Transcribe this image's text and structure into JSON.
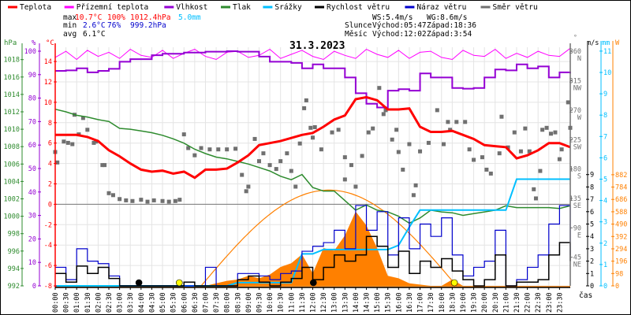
{
  "legend": [
    {
      "label": "Teplota",
      "color": "#ff0000"
    },
    {
      "label": "Přízemní teplota",
      "color": "#ff00ff"
    },
    {
      "label": "Vlhkost",
      "color": "#9400d3"
    },
    {
      "label": "Tlak",
      "color": "#2e8b2e"
    },
    {
      "label": "Srážky",
      "color": "#00bfff"
    },
    {
      "label": "Rychlost větru",
      "color": "#000000"
    },
    {
      "label": "Náraz větru",
      "color": "#0000cc"
    },
    {
      "label": "Směr větru",
      "color": "#707070"
    }
  ],
  "stats": {
    "max_label": "max",
    "min_label": "min",
    "avg_label": "avg",
    "max_temp": "10.7°C",
    "max_hum": "100%",
    "max_press": "1012.4hPa",
    "max_rain": "5.0mm",
    "min_temp": "2.6°C",
    "min_hum": "76%",
    "min_press": "999.2hPa",
    "avg_temp": "6.1°C",
    "ws": "WS:5.4m/s",
    "wg": "WG:8.6m/s",
    "sun_label": "Slunce",
    "sunrise": "Východ:05:47",
    "sunset": "Západ:18:36",
    "moon_label": "Měsíc",
    "moonrise": "Východ:12:02",
    "moonset": "Západ:3:54"
  },
  "chart_data": {
    "type": "line",
    "title": "31.3.2023",
    "xlabel": "čas",
    "x_tick_labels": [
      "00:00",
      "00:30",
      "01:00",
      "01:30",
      "02:00",
      "02:30",
      "03:00",
      "03:30",
      "04:00",
      "04:30",
      "05:00",
      "05:30",
      "06:00",
      "06:30",
      "07:00",
      "07:30",
      "08:00",
      "08:30",
      "09:00",
      "09:30",
      "10:00",
      "10:30",
      "11:00",
      "11:30",
      "12:00",
      "12:30",
      "13:00",
      "13:30",
      "14:00",
      "14:30",
      "15:00",
      "15:30",
      "16:00",
      "16:30",
      "17:00",
      "17:30",
      "18:00",
      "18:30",
      "19:00",
      "19:30",
      "20:00",
      "20:30",
      "21:00",
      "21:30",
      "22:00",
      "22:30",
      "23:00",
      "23:30"
    ],
    "x_hours_step": 0.5,
    "axes": {
      "pressure": {
        "unit": "hPa",
        "range": [
          992,
          1018
        ],
        "ticks": [
          992,
          994,
          996,
          998,
          1000,
          1002,
          1004,
          1006,
          1008,
          1010,
          1012,
          1014,
          1016,
          1018
        ],
        "color": "#2e8b2e"
      },
      "humidity": {
        "unit": "%",
        "range": [
          0,
          100
        ],
        "ticks": [
          0,
          10,
          20,
          30,
          40,
          50,
          60,
          70,
          80,
          90,
          100
        ],
        "color": "#9400d3"
      },
      "temperature": {
        "unit": "°C",
        "range": [
          -8,
          14
        ],
        "ticks": [
          -8,
          -6,
          -4,
          -2,
          0,
          2,
          4,
          6,
          8,
          10,
          12,
          14
        ],
        "color": "#ff0000"
      },
      "direction": {
        "unit": "°",
        "ticks": [
          {
            "v": 45,
            "l": "45",
            "d": "NE"
          },
          {
            "v": 90,
            "l": "90",
            "d": "E"
          },
          {
            "v": 135,
            "l": "135",
            "d": "SE"
          },
          {
            "v": 180,
            "l": "180",
            "d": "S"
          },
          {
            "v": 225,
            "l": "225",
            "d": "SW"
          },
          {
            "v": 270,
            "l": "270",
            "d": "W"
          },
          {
            "v": 315,
            "l": "315",
            "d": "NW"
          },
          {
            "v": 360,
            "l": "360",
            "d": "N"
          }
        ],
        "color": "#707070"
      },
      "wind": {
        "unit": "m/s",
        "range": [
          0,
          9
        ],
        "ticks": [
          0,
          1,
          2,
          3,
          4,
          5,
          6,
          7,
          8,
          9
        ],
        "color": "#000000"
      },
      "rain": {
        "unit": "mm",
        "range": [
          0,
          11
        ],
        "ticks": [
          0,
          1,
          2,
          3,
          4,
          5,
          6,
          7,
          8,
          9,
          10,
          11
        ],
        "color": "#00bfff"
      },
      "radiation": {
        "unit": "W",
        "range": [
          0,
          882
        ],
        "ticks": [
          0,
          98,
          196,
          294,
          392,
          490,
          588,
          686,
          784,
          882
        ],
        "color": "#ff8000"
      }
    },
    "series": [
      {
        "name": "Teplota",
        "axis": "temperature",
        "values": [
          6.8,
          6.8,
          6.8,
          6.6,
          6.2,
          5.3,
          4.7,
          4.0,
          3.4,
          3.2,
          3.3,
          3.0,
          3.2,
          2.6,
          3.4,
          3.4,
          3.5,
          4.1,
          4.8,
          5.8,
          6.0,
          6.2,
          6.5,
          6.8,
          7.0,
          7.6,
          8.3,
          8.7,
          10.3,
          10.5,
          10.2,
          9.3,
          9.3,
          9.4,
          7.6,
          7.1,
          7.1,
          7.2,
          6.8,
          6.4,
          5.8,
          5.7,
          5.6,
          4.5,
          4.8,
          5.3,
          6.0,
          6.0,
          5.6
        ]
      },
      {
        "name": "Přízemní teplota",
        "axis": "temperature",
        "values": [
          14.4,
          15.0,
          14.2,
          15.1,
          14.5,
          14.9,
          14.3,
          15.2,
          14.6,
          14.4,
          15.1,
          14.3,
          14.8,
          15.2,
          14.5,
          14.2,
          14.9,
          15.0,
          14.4,
          14.6,
          15.2,
          14.3,
          14.7,
          15.1,
          14.5,
          14.2,
          15.0,
          14.6,
          14.3,
          15.2,
          14.7,
          14.4,
          15.1,
          14.3,
          14.9,
          15.0,
          14.4,
          14.2,
          15.1,
          14.6,
          14.5,
          15.2,
          14.3,
          14.8,
          14.4,
          15.0,
          14.6,
          14.5,
          15.3
        ]
      },
      {
        "name": "Vlhkost",
        "axis": "humidity",
        "values": [
          91.6,
          91.8,
          92.7,
          91.0,
          91.6,
          92.5,
          95.5,
          96.6,
          96.6,
          98.3,
          98.9,
          98.9,
          99.4,
          99.4,
          99.8,
          99.8,
          100,
          99.8,
          99.8,
          97.7,
          95.5,
          95.5,
          95.0,
          92.7,
          94.4,
          92.7,
          92.7,
          88.8,
          82.1,
          77.6,
          76.0,
          83.2,
          83.8,
          83.2,
          90.5,
          88.8,
          88.8,
          84.3,
          84.0,
          84.3,
          88.8,
          92.2,
          91.8,
          94.4,
          92.7,
          93.5,
          88.8,
          91.0,
          90.5
        ]
      },
      {
        "name": "Tlak",
        "axis": "pressure",
        "values": [
          1012.3,
          1012.0,
          1011.6,
          1011.4,
          1011.1,
          1010.9,
          1010.1,
          1010.0,
          1009.8,
          1009.6,
          1009.3,
          1008.9,
          1008.4,
          1007.7,
          1007.2,
          1006.8,
          1006.6,
          1006.3,
          1006.0,
          1005.6,
          1005.2,
          1004.6,
          1004.2,
          1004.8,
          1003.3,
          1002.9,
          1002.9,
          1001.8,
          1000.7,
          1001.3,
          1000.7,
          1000.5,
          1000.0,
          999.2,
          999.8,
          1000.7,
          1000.5,
          1000.4,
          1000.1,
          1000.3,
          1000.5,
          1000.7,
          1001.2,
          1001.0,
          1001.0,
          1001.0,
          1001.0,
          1000.9,
          1001.2
        ]
      },
      {
        "name": "Srážky",
        "axis": "rain",
        "values": [
          0,
          0,
          0,
          0,
          0,
          0,
          0,
          0,
          0,
          0,
          0,
          0,
          0,
          0,
          0,
          0,
          0,
          0.15,
          0.15,
          0.15,
          0.15,
          0.15,
          0.15,
          1.5,
          1.5,
          1.7,
          1.7,
          1.7,
          1.7,
          1.7,
          1.7,
          1.7,
          1.9,
          2.75,
          3.55,
          3.55,
          3.55,
          3.55,
          3.55,
          3.55,
          3.55,
          3.55,
          3.55,
          5.0,
          5.0,
          5.0,
          5.0,
          5.0,
          5.0
        ]
      },
      {
        "name": "Rychlost větru",
        "axis": "wind",
        "values": [
          1.0,
          0.3,
          1.6,
          1.0,
          1.5,
          0.6,
          0,
          0,
          0,
          0,
          0,
          0,
          0.3,
          0,
          0,
          0,
          0,
          0.5,
          0.8,
          0.3,
          0,
          0.3,
          0.6,
          1.5,
          0.5,
          1.5,
          2.5,
          2.0,
          2.5,
          4.0,
          3.2,
          1.5,
          2.8,
          1.0,
          2.0,
          1.5,
          2.2,
          1.2,
          0.5,
          0,
          0.5,
          2.5,
          0,
          0.3,
          0.3,
          0.5,
          2.5,
          3.5,
          2.0
        ]
      },
      {
        "name": "Náraz větru",
        "axis": "wind",
        "values": [
          1.5,
          0.5,
          3.0,
          2.0,
          1.8,
          0.8,
          0,
          0,
          0,
          0,
          0,
          0,
          0,
          0,
          1.5,
          0,
          0,
          1.0,
          1.0,
          0.8,
          0.5,
          1.0,
          1.2,
          2.8,
          3.2,
          3.5,
          4.5,
          3.0,
          6.5,
          4.5,
          6.0,
          2.5,
          5.5,
          3.0,
          5.0,
          4.0,
          5.5,
          2.5,
          0.8,
          1.5,
          2.0,
          4.5,
          0,
          0.5,
          1.5,
          2.5,
          5.0,
          6.5,
          2.5
        ]
      },
      {
        "name": "Sluneční záření",
        "axis": "radiation",
        "values": [
          0,
          0,
          0,
          0,
          0,
          0,
          0,
          0,
          0,
          0,
          0,
          0,
          0,
          0,
          0,
          20,
          40,
          50,
          80,
          60,
          90,
          150,
          180,
          250,
          100,
          300,
          280,
          400,
          590,
          480,
          300,
          80,
          60,
          20,
          10,
          0,
          0,
          50,
          0,
          0,
          0,
          0,
          0,
          0,
          0,
          0,
          0,
          0,
          0
        ]
      },
      {
        "name": "Teoretické záření",
        "axis": "radiation",
        "peak_hour": 12.75,
        "start_hour": 6.8,
        "end_hour": 18.7,
        "peak": 760
      }
    ],
    "wind_direction_points": [
      [
        0,
        206
      ],
      [
        0.1,
        190
      ],
      [
        0.4,
        222
      ],
      [
        0.6,
        220
      ],
      [
        0.8,
        218
      ],
      [
        0.9,
        263
      ],
      [
        1.1,
        233
      ],
      [
        1.3,
        258
      ],
      [
        1.5,
        240
      ],
      [
        1.8,
        220
      ],
      [
        1.9,
        222
      ],
      [
        2.2,
        186
      ],
      [
        2.3,
        186
      ],
      [
        2.5,
        143
      ],
      [
        2.7,
        140
      ],
      [
        3,
        134
      ],
      [
        3.3,
        132
      ],
      [
        3.6,
        131
      ],
      [
        4,
        133
      ],
      [
        4.3,
        130
      ],
      [
        4.6,
        132
      ],
      [
        5,
        131
      ],
      [
        5.3,
        130
      ],
      [
        5.6,
        131
      ],
      [
        5.8,
        133
      ],
      [
        6,
        233
      ],
      [
        6.2,
        212
      ],
      [
        6.5,
        201
      ],
      [
        6.8,
        212
      ],
      [
        7.2,
        210
      ],
      [
        7.6,
        210
      ],
      [
        8,
        210
      ],
      [
        8.4,
        211
      ],
      [
        8.7,
        171
      ],
      [
        8.9,
        146
      ],
      [
        9,
        153
      ],
      [
        9.3,
        226
      ],
      [
        9.5,
        192
      ],
      [
        9.7,
        204
      ],
      [
        10,
        186
      ],
      [
        10.3,
        180
      ],
      [
        10.5,
        192
      ],
      [
        10.8,
        204
      ],
      [
        11,
        177
      ],
      [
        11.2,
        153
      ],
      [
        11.4,
        219
      ],
      [
        11.6,
        273
      ],
      [
        11.7,
        285
      ],
      [
        11.9,
        243
      ],
      [
        12,
        228
      ],
      [
        12.1,
        244
      ],
      [
        12.4,
        210
      ],
      [
        12.9,
        236
      ],
      [
        13.2,
        240
      ],
      [
        13.5,
        198
      ],
      [
        13.5,
        164
      ],
      [
        13.8,
        186
      ],
      [
        14,
        153
      ],
      [
        14.3,
        200
      ],
      [
        14.6,
        236
      ],
      [
        14.8,
        242
      ],
      [
        15.1,
        304
      ],
      [
        15.3,
        264
      ],
      [
        15.4,
        270
      ],
      [
        15.7,
        225
      ],
      [
        15.9,
        240
      ],
      [
        16,
        206
      ],
      [
        16.2,
        179
      ],
      [
        16.5,
        218
      ],
      [
        16.7,
        140
      ],
      [
        16.8,
        155
      ],
      [
        17,
        207
      ],
      [
        17.4,
        220
      ],
      [
        17.8,
        270
      ],
      [
        18.1,
        218
      ],
      [
        18.3,
        252
      ],
      [
        18.4,
        240
      ],
      [
        18.7,
        252
      ],
      [
        19.1,
        252
      ],
      [
        19.3,
        210
      ],
      [
        19.5,
        194
      ],
      [
        19.9,
        198
      ],
      [
        20.1,
        179
      ],
      [
        20.3,
        173
      ],
      [
        20.7,
        204
      ],
      [
        20.8,
        260
      ],
      [
        21.1,
        213
      ],
      [
        21.4,
        236
      ],
      [
        21.7,
        207
      ],
      [
        21.9,
        242
      ],
      [
        22.1,
        207
      ],
      [
        22.3,
        149
      ],
      [
        22.4,
        135
      ],
      [
        22.6,
        177
      ],
      [
        22.7,
        240
      ],
      [
        22.9,
        243
      ],
      [
        23.1,
        234
      ],
      [
        23.3,
        236
      ],
      [
        23.5,
        195
      ],
      [
        23.6,
        210
      ],
      [
        23.9,
        282
      ],
      [
        24,
        243
      ]
    ],
    "events": [
      {
        "name": "moonset",
        "hour": 3.9,
        "color": "#000000"
      },
      {
        "name": "sunrise",
        "hour": 5.78,
        "color": "#ffff00"
      },
      {
        "name": "moonrise",
        "hour": 12.03,
        "color": "#000000"
      },
      {
        "name": "sunset",
        "hour": 18.6,
        "color": "#ffff00"
      }
    ]
  }
}
